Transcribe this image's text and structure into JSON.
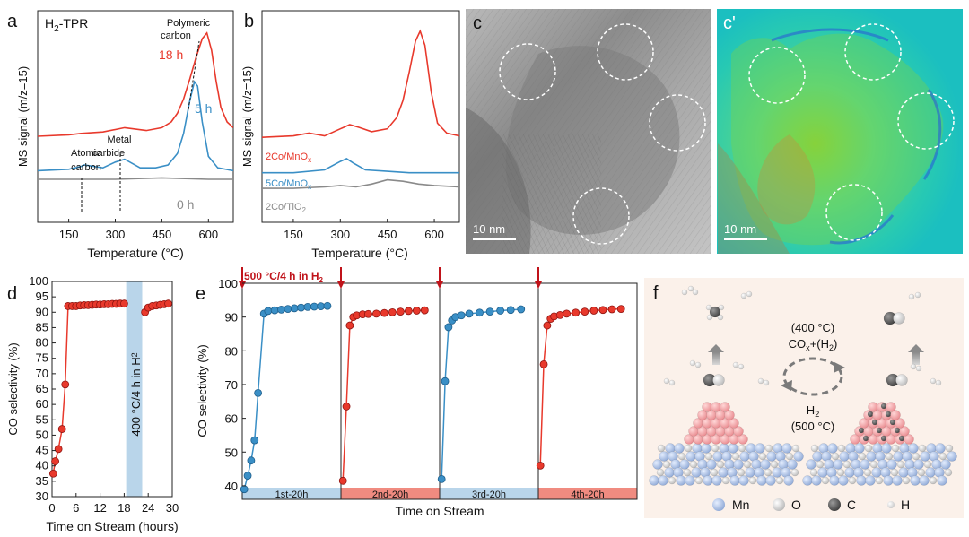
{
  "panels": {
    "a": {
      "letter": "a",
      "title": "H2-TPR",
      "title_main": "H",
      "title_sub": "2",
      "title_rest": "-TPR",
      "ylabel": "MS signal (m/z=15)",
      "xlabel": "Temperature (°C)",
      "xticks": [
        "150",
        "300",
        "450",
        "600"
      ],
      "annotations": {
        "polymeric": "Polymeric",
        "carbon1": "carbon",
        "metal": "Metal",
        "carbide": "carbide",
        "atomic": "Atomic",
        "carbon2": "carbon"
      },
      "series_labels": {
        "h18": "18 h",
        "h5": "5 h",
        "h0": "0 h"
      }
    },
    "b": {
      "letter": "b",
      "ylabel": "MS signal (m/z=15)",
      "xlabel": "Temperature (°C)",
      "xticks": [
        "150",
        "300",
        "450",
        "600"
      ],
      "series_labels": {
        "s2co_mn": "2Co/MnO",
        "s2co_mn_sub": "x",
        "s5co_mn": "5Co/MnO",
        "s5co_mn_sub": "x",
        "s2co_ti": "2Co/TiO",
        "s2co_ti_sub": "2"
      }
    },
    "c": {
      "letter": "c",
      "scale": "10 nm"
    },
    "cp": {
      "letter": "c'",
      "scale": "10 nm"
    },
    "d": {
      "letter": "d",
      "ylabel": "CO selectivity (%)",
      "xlabel": "Time on Stream (hours)",
      "yticks": [
        "30",
        "35",
        "40",
        "45",
        "50",
        "55",
        "60",
        "65",
        "70",
        "75",
        "80",
        "85",
        "90",
        "95",
        "100"
      ],
      "xticks": [
        "0",
        "6",
        "12",
        "18",
        "24",
        "30"
      ],
      "band_label": "400 °C/4 h in H",
      "band_sub": "2"
    },
    "e": {
      "letter": "e",
      "ylabel": "CO selectivity (%)",
      "xlabel": "Time on Stream",
      "yticks": [
        "40",
        "50",
        "60",
        "70",
        "80",
        "90",
        "100"
      ],
      "top_label": "500 °C/4 h in H",
      "top_sub": "2",
      "segments": [
        "1st-20h",
        "2nd-20h",
        "3rd-20h",
        "4th-20h"
      ]
    },
    "f": {
      "letter": "f",
      "cond1": "(400 °C)",
      "cond2a": "CO",
      "cond2b": "x",
      "cond2c": "+(H",
      "cond2d": "2",
      "cond2e": ")",
      "cond3a": "H",
      "cond3b": "2",
      "cond4": "(500 °C)",
      "legend": [
        "Mn",
        "O",
        "C",
        "H"
      ]
    }
  },
  "colors": {
    "red": "#e8392c",
    "blue": "#3a8fc6",
    "gray": "#8a8a8a",
    "band_blue": "#b9d5ea",
    "band_red": "#f08b80",
    "dark_red": "#c0131a"
  },
  "chart_data": [
    {
      "type": "line",
      "panel": "a",
      "title": "H2-TPR",
      "xlabel": "Temperature (°C)",
      "ylabel": "MS signal (m/z=15)",
      "xlim": [
        50,
        680
      ],
      "series": [
        {
          "name": "18 h",
          "x": [
            50,
            150,
            190,
            260,
            330,
            400,
            450,
            480,
            500,
            520,
            540,
            560,
            580,
            595,
            610,
            625,
            640,
            660,
            680
          ],
          "values": [
            0.6,
            0.61,
            0.62,
            0.63,
            0.66,
            0.64,
            0.66,
            0.7,
            0.76,
            0.86,
            1.0,
            1.15,
            1.28,
            1.32,
            1.2,
            0.98,
            0.8,
            0.7,
            0.66
          ]
        },
        {
          "name": "5 h",
          "x": [
            50,
            150,
            190,
            200,
            260,
            300,
            330,
            380,
            430,
            470,
            500,
            520,
            540,
            555,
            565,
            580,
            600,
            630,
            680
          ],
          "values": [
            0.36,
            0.37,
            0.39,
            0.4,
            0.38,
            0.42,
            0.44,
            0.38,
            0.38,
            0.4,
            0.48,
            0.62,
            0.85,
            0.98,
            0.95,
            0.7,
            0.46,
            0.38,
            0.36
          ]
        },
        {
          "name": "0 h",
          "x": [
            50,
            300,
            450,
            600,
            680
          ],
          "values": [
            0.3,
            0.3,
            0.31,
            0.3,
            0.3
          ]
        }
      ]
    },
    {
      "type": "line",
      "panel": "b",
      "xlabel": "Temperature (°C)",
      "ylabel": "MS signal (m/z=15)",
      "xlim": [
        50,
        680
      ],
      "series": [
        {
          "name": "2Co/MnOx",
          "x": [
            50,
            150,
            200,
            250,
            300,
            330,
            360,
            400,
            450,
            480,
            500,
            520,
            540,
            555,
            570,
            590,
            610,
            640,
            680
          ],
          "values": [
            0.6,
            0.61,
            0.63,
            0.61,
            0.66,
            0.69,
            0.67,
            0.64,
            0.66,
            0.74,
            0.86,
            1.06,
            1.28,
            1.35,
            1.25,
            0.92,
            0.7,
            0.63,
            0.61
          ]
        },
        {
          "name": "5Co/MnOx",
          "x": [
            50,
            150,
            250,
            300,
            320,
            340,
            380,
            450,
            520,
            600,
            680
          ],
          "values": [
            0.35,
            0.35,
            0.37,
            0.43,
            0.45,
            0.42,
            0.37,
            0.36,
            0.35,
            0.35,
            0.35
          ]
        },
        {
          "name": "2Co/TiO2",
          "x": [
            50,
            150,
            250,
            300,
            350,
            400,
            450,
            500,
            550,
            600,
            680
          ],
          "values": [
            0.24,
            0.24,
            0.25,
            0.26,
            0.25,
            0.27,
            0.3,
            0.29,
            0.27,
            0.26,
            0.25
          ]
        }
      ]
    },
    {
      "type": "scatter",
      "panel": "d",
      "xlabel": "Time on Stream (hours)",
      "ylabel": "CO selectivity (%)",
      "xlim": [
        0,
        30
      ],
      "ylim": [
        30,
        100
      ],
      "shaded_band": [
        18.5,
        22.5
      ],
      "series": [
        {
          "name": "CO selectivity",
          "x": [
            0.3,
            0.8,
            1.6,
            2.5,
            3.3,
            4.0,
            5.0,
            6.0,
            7.0,
            8.0,
            9.0,
            10.0,
            11.0,
            12.0,
            13.0,
            14.0,
            15.0,
            16.0,
            17.0,
            18.0,
            23.2,
            24.0,
            25.0,
            26.0,
            27.0,
            28.0,
            29.0
          ],
          "values": [
            37.5,
            41.5,
            45.5,
            52,
            66.5,
            92,
            92,
            92,
            92.2,
            92.3,
            92.3,
            92.4,
            92.5,
            92.5,
            92.6,
            92.6,
            92.7,
            92.7,
            92.8,
            92.8,
            90,
            91.5,
            92,
            92.2,
            92.4,
            92.6,
            92.8
          ]
        }
      ]
    },
    {
      "type": "scatter",
      "panel": "e",
      "xlabel": "Time on Stream",
      "ylabel": "CO selectivity (%)",
      "ylim": [
        36,
        100
      ],
      "series": [
        {
          "name": "1st-20h",
          "values": [
            39,
            43,
            47.5,
            53.5,
            67.5,
            91,
            91.8,
            92,
            92.2,
            92.4,
            92.6,
            92.8,
            93,
            93.1,
            93.2,
            93.3
          ]
        },
        {
          "name": "2nd-20h",
          "values": [
            41.5,
            63.5,
            87.5,
            90,
            90.5,
            90.8,
            90.9,
            91,
            91.2,
            91.4,
            91.6,
            91.8,
            91.9,
            92
          ]
        },
        {
          "name": "3rd-20h",
          "values": [
            42,
            71,
            87,
            89,
            90,
            90.5,
            91,
            91.3,
            91.6,
            91.9,
            92.1,
            92.3
          ]
        },
        {
          "name": "4th-20h",
          "values": [
            46,
            76,
            87.5,
            89.5,
            90.2,
            90.6,
            91,
            91.3,
            91.6,
            91.9,
            92.1,
            92.3,
            92.4
          ]
        }
      ]
    }
  ]
}
